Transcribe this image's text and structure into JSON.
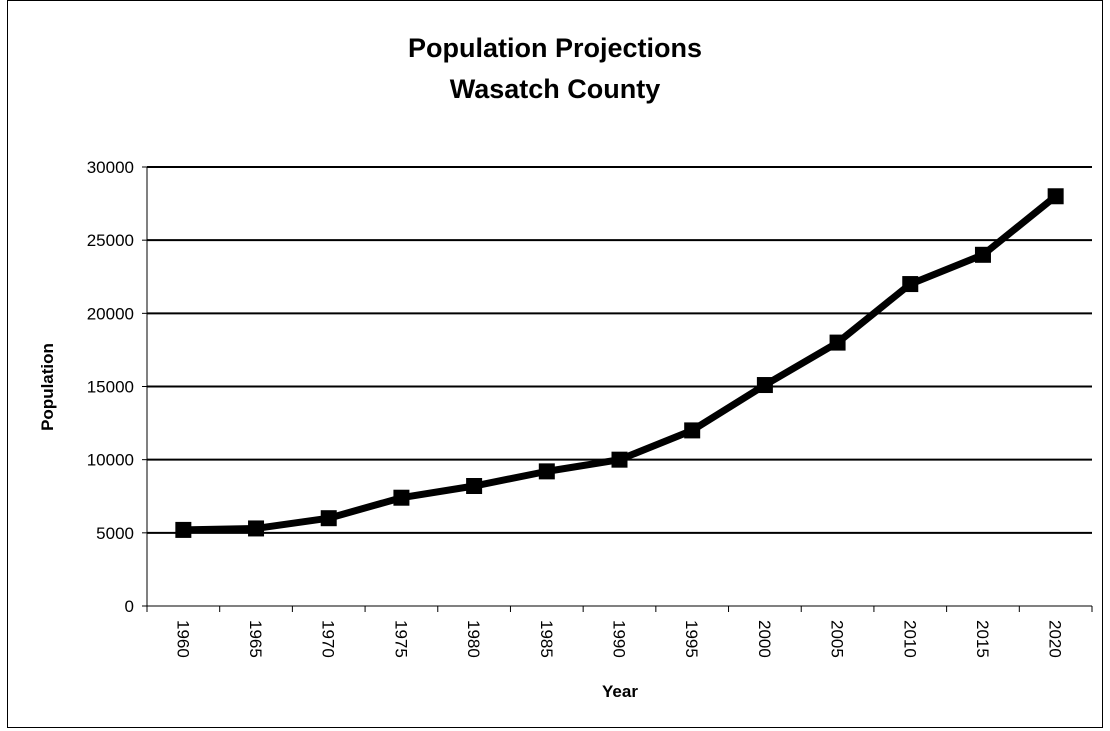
{
  "chart_data": {
    "type": "line",
    "title": "Population Projections",
    "subtitle": "Wasatch County",
    "xlabel": "Year",
    "ylabel": "Population",
    "categories": [
      "1960",
      "1965",
      "1970",
      "1975",
      "1980",
      "1985",
      "1990",
      "1995",
      "2000",
      "2005",
      "2010",
      "2015",
      "2020"
    ],
    "series": [
      {
        "values": [
          5200,
          5300,
          6000,
          7400,
          8200,
          9200,
          10000,
          12000,
          15100,
          18000,
          22000,
          24000,
          28000
        ]
      }
    ],
    "ylim": [
      0,
      30000
    ],
    "yticks": [
      "0",
      "5000",
      "10000",
      "15000",
      "20000",
      "25000",
      "30000"
    ],
    "grid": "horizontal",
    "legend": "none",
    "line_color": "#000000",
    "marker": "square"
  }
}
